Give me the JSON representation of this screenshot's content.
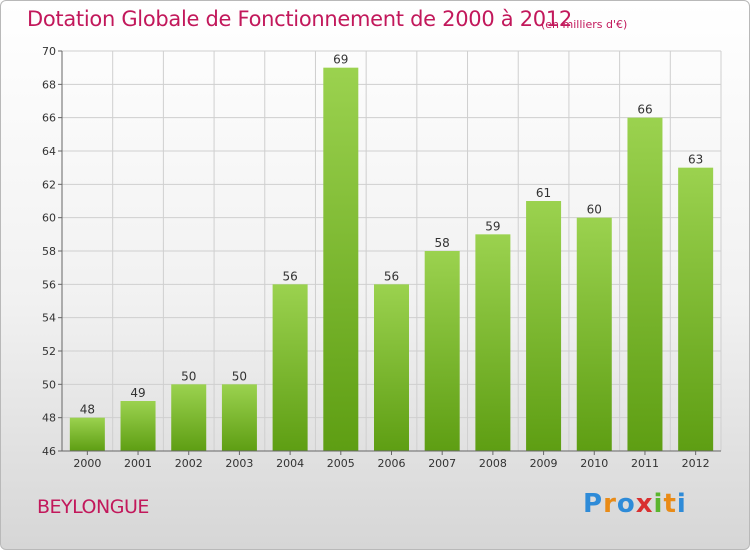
{
  "header": {
    "title": "Dotation Globale de Fonctionnement de 2000 à 2012",
    "unit": "(en milliers d'€)"
  },
  "footer": {
    "town": "BEYLONGUE",
    "logo": [
      "P",
      "r",
      "o",
      "x",
      "i",
      "t",
      "i"
    ]
  },
  "colors": {
    "accent": "#c2185b",
    "bar_top": "#9bd24f",
    "bar_bottom": "#5e9e13",
    "grid": "#cfcfcf"
  },
  "chart_data": {
    "type": "bar",
    "categories": [
      "2000",
      "2001",
      "2002",
      "2003",
      "2004",
      "2005",
      "2006",
      "2007",
      "2008",
      "2009",
      "2010",
      "2011",
      "2012"
    ],
    "values": [
      48,
      49,
      50,
      50,
      56,
      69,
      56,
      58,
      59,
      61,
      60,
      66,
      63
    ],
    "value_labels": [
      "48",
      "49",
      "50",
      "50",
      "56",
      "69",
      "56",
      "58",
      "59",
      "61",
      "60",
      "66",
      "63"
    ],
    "title": "Dotation Globale de Fonctionnement de 2000 à 2012",
    "ylim": [
      46,
      70
    ],
    "yticks": [
      "46",
      "48",
      "50",
      "52",
      "54",
      "56",
      "58",
      "60",
      "62",
      "64",
      "66",
      "68",
      "70"
    ],
    "grid": true
  }
}
